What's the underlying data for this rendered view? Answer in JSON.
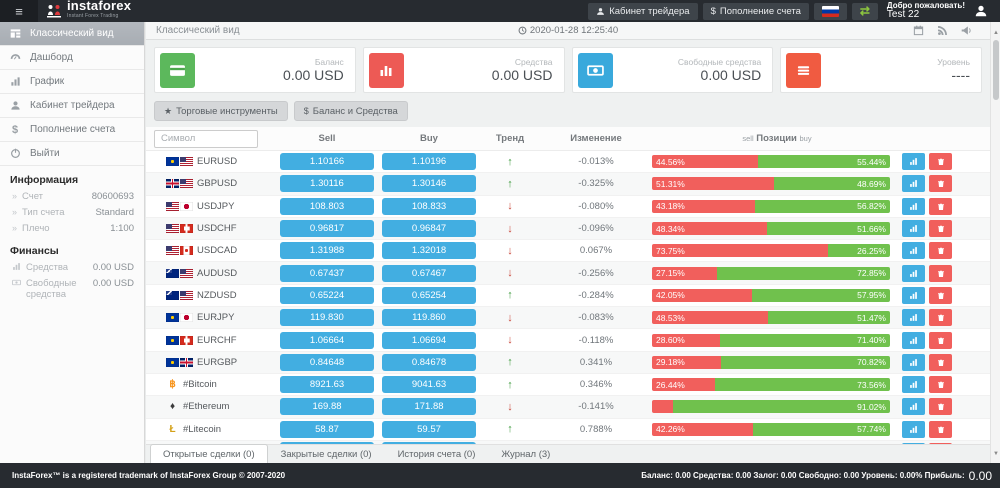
{
  "topbar": {
    "brand": "instaforex",
    "brand_sub": "Instant Forex Trading",
    "cabinet_button": "Кабинет трейдера",
    "deposit_button": "Пополнение счета",
    "deposit_symbol": "$",
    "welcome_line1": "Добро пожаловать!",
    "welcome_line2": "Test 22"
  },
  "sidebar": {
    "items": [
      {
        "label": "Классический вид",
        "active": true
      },
      {
        "label": "Дашборд"
      },
      {
        "label": "График"
      },
      {
        "label": "Кабинет трейдера"
      },
      {
        "label": "Пополнение счета"
      },
      {
        "label": "Выйти"
      }
    ],
    "info_heading": "Информация",
    "info_items": [
      {
        "label": "Счет",
        "value": "80600693"
      },
      {
        "label": "Тип счета",
        "value": "Standard"
      },
      {
        "label": "Плечо",
        "value": "1:100"
      }
    ],
    "finance_heading": "Финансы",
    "finance_items": [
      {
        "label": "Средства",
        "value": "0.00 USD"
      },
      {
        "label": "Свободные средства",
        "value": "0.00 USD"
      }
    ]
  },
  "content_header": {
    "title": "Классический вид",
    "datetime": "2020-01-28 12:25:40"
  },
  "cards": [
    {
      "label": "Баланс",
      "value": "0.00 USD",
      "icon": "credit-card-icon",
      "color": "#5cb85c"
    },
    {
      "label": "Средства",
      "value": "0.00 USD",
      "icon": "bar-chart-icon",
      "color": "#ed5a55"
    },
    {
      "label": "Свободные средства",
      "value": "0.00 USD",
      "icon": "money-icon",
      "color": "#39a9dc"
    },
    {
      "label": "Уровень",
      "value": "----",
      "icon": "menu-bars-icon",
      "color": "#f05b41"
    }
  ],
  "toolbar": {
    "instruments_button": "Торговые инструменты",
    "instruments_icon": "★",
    "balance_button": "Баланс и Средства",
    "balance_icon": "$"
  },
  "table": {
    "symbol_placeholder": "Символ",
    "headers": {
      "sell": "Sell",
      "buy": "Buy",
      "trend": "Тренд",
      "change": "Изменение",
      "positions_sell": "sell",
      "positions": "Позиции",
      "positions_buy": "buy"
    },
    "rows": [
      {
        "symbol": "EURUSD",
        "flags": [
          "eur",
          "usd"
        ],
        "sell": "1.10166",
        "buy": "1.10196",
        "trend": "up",
        "change": "-0.013%",
        "sell_pct": 44.56,
        "buy_pct": 55.44,
        "sell_label": "44.56%",
        "buy_label": "55.44%"
      },
      {
        "symbol": "GBPUSD",
        "flags": [
          "gbp",
          "usd"
        ],
        "sell": "1.30116",
        "buy": "1.30146",
        "trend": "up",
        "change": "-0.325%",
        "sell_pct": 51.31,
        "buy_pct": 48.69,
        "sell_label": "51.31%",
        "buy_label": "48.69%"
      },
      {
        "symbol": "USDJPY",
        "flags": [
          "usd",
          "jpy"
        ],
        "sell": "108.803",
        "buy": "108.833",
        "trend": "down",
        "change": "-0.080%",
        "sell_pct": 43.18,
        "buy_pct": 56.82,
        "sell_label": "43.18%",
        "buy_label": "56.82%"
      },
      {
        "symbol": "USDCHF",
        "flags": [
          "usd",
          "chf"
        ],
        "sell": "0.96817",
        "buy": "0.96847",
        "trend": "down",
        "change": "-0.096%",
        "sell_pct": 48.34,
        "buy_pct": 51.66,
        "sell_label": "48.34%",
        "buy_label": "51.66%"
      },
      {
        "symbol": "USDCAD",
        "flags": [
          "usd",
          "cad"
        ],
        "sell": "1.31988",
        "buy": "1.32018",
        "trend": "down",
        "change": "0.067%",
        "sell_pct": 73.75,
        "buy_pct": 26.25,
        "sell_label": "73.75%",
        "buy_label": "26.25%"
      },
      {
        "symbol": "AUDUSD",
        "flags": [
          "aud",
          "usd"
        ],
        "sell": "0.67437",
        "buy": "0.67467",
        "trend": "down",
        "change": "-0.256%",
        "sell_pct": 27.15,
        "buy_pct": 72.85,
        "sell_label": "27.15%",
        "buy_label": "72.85%"
      },
      {
        "symbol": "NZDUSD",
        "flags": [
          "nzd",
          "usd"
        ],
        "sell": "0.65224",
        "buy": "0.65254",
        "trend": "up",
        "change": "-0.284%",
        "sell_pct": 42.05,
        "buy_pct": 57.95,
        "sell_label": "42.05%",
        "buy_label": "57.95%"
      },
      {
        "symbol": "EURJPY",
        "flags": [
          "eur",
          "jpy"
        ],
        "sell": "119.830",
        "buy": "119.860",
        "trend": "down",
        "change": "-0.083%",
        "sell_pct": 48.53,
        "buy_pct": 51.47,
        "sell_label": "48.53%",
        "buy_label": "51.47%"
      },
      {
        "symbol": "EURCHF",
        "flags": [
          "eur",
          "chf"
        ],
        "sell": "1.06664",
        "buy": "1.06694",
        "trend": "down",
        "change": "-0.118%",
        "sell_pct": 28.6,
        "buy_pct": 71.4,
        "sell_label": "28.60%",
        "buy_label": "71.40%"
      },
      {
        "symbol": "EURGBP",
        "flags": [
          "eur",
          "gbp"
        ],
        "sell": "0.84648",
        "buy": "0.84678",
        "trend": "up",
        "change": "0.341%",
        "sell_pct": 29.18,
        "buy_pct": 70.82,
        "sell_label": "29.18%",
        "buy_label": "70.82%"
      },
      {
        "symbol": "#Bitcoin",
        "crypto": "btc",
        "sell": "8921.63",
        "buy": "9041.63",
        "trend": "up",
        "change": "0.346%",
        "sell_pct": 26.44,
        "buy_pct": 73.56,
        "sell_label": "26.44%",
        "buy_label": "73.56%"
      },
      {
        "symbol": "#Ethereum",
        "crypto": "eth",
        "sell": "169.88",
        "buy": "171.88",
        "trend": "down",
        "change": "-0.141%",
        "sell_pct": 8.98,
        "buy_pct": 91.02,
        "sell_label": "",
        "buy_label": "91.02%"
      },
      {
        "symbol": "#Litecoin",
        "crypto": "ltc",
        "sell": "58.87",
        "buy": "59.57",
        "trend": "up",
        "change": "0.788%",
        "sell_pct": 42.26,
        "buy_pct": 57.74,
        "sell_label": "42.26%",
        "buy_label": "57.74%"
      }
    ],
    "partial_row": {
      "sell_pct": 4,
      "buy_pct": 96
    }
  },
  "tabs": [
    {
      "label": "Открытые сделки (0)",
      "active": true
    },
    {
      "label": "Закрытые сделки (0)"
    },
    {
      "label": "История счета (0)"
    },
    {
      "label": "Журнал (3)"
    }
  ],
  "footer": {
    "copyright": "InstaForex™ is a registered trademark of InstaForex Group © 2007-2020",
    "stats_text": "Баланс: 0.00 Средства: 0.00 Залог: 0.00 Свободно: 0.00 Уровень: 0.00% Прибыль:",
    "profit_value": "0.00"
  },
  "colors": {
    "topbar_bg": "#272b30",
    "price_button": "#42aee1",
    "bar_sell": "#f15f5c",
    "bar_buy": "#70c14d",
    "trend_up": "#3f9c3f",
    "trend_down": "#c8473a"
  }
}
